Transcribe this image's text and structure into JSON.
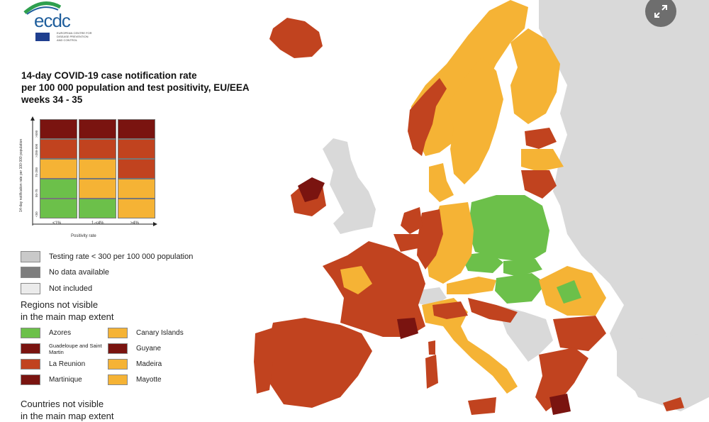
{
  "logo": {
    "text": "ecdc",
    "subtitle": "EUROPEAN CENTRE FOR DISEASE PREVENTION AND CONTROL"
  },
  "title": {
    "line1": "14-day COVID-19 case notification rate",
    "line2": "per 100 000 population and test positivity, EU/EEA",
    "line3": "weeks 34 - 35"
  },
  "matrix": {
    "y_axis_label": "14-day notification rate per 100 000 population",
    "y_ticks": [
      "<50",
      "50-75",
      "75-200",
      ">200-500",
      ">500"
    ],
    "x_axis_label": "Positivity rate",
    "x_ticks": [
      "<1%",
      "1-<4%",
      "≥4%"
    ],
    "colors": {
      "green": "#6cc04a",
      "yellow": "#f5b335",
      "red": "#c1431f",
      "darkred": "#7a1410"
    },
    "grid": [
      [
        "darkred",
        "darkred",
        "darkred"
      ],
      [
        "red",
        "red",
        "red"
      ],
      [
        "yellow",
        "yellow",
        "red"
      ],
      [
        "green",
        "yellow",
        "yellow"
      ],
      [
        "green",
        "green",
        "yellow"
      ]
    ]
  },
  "legend": {
    "testing_rate": "Testing rate < 300 per 100 000 population",
    "no_data": "No data available",
    "not_included": "Not included",
    "testing_color": "#c9c9c9",
    "no_data_color": "#7d7d7d",
    "not_included_color": "#ebebeb"
  },
  "regions": {
    "heading1": "Regions not visible",
    "heading2": "in the main map extent",
    "items": [
      {
        "label": "Azores",
        "color": "#6cc04a"
      },
      {
        "label": "Canary Islands",
        "color": "#f5b335"
      },
      {
        "label": "Guadeloupe and Saint Martin",
        "color": "#7a1410"
      },
      {
        "label": "Guyane",
        "color": "#7a1410"
      },
      {
        "label": "La Reunion",
        "color": "#c1431f"
      },
      {
        "label": "Madeira",
        "color": "#f5b335"
      },
      {
        "label": "Martinique",
        "color": "#7a1410"
      },
      {
        "label": "Mayotte",
        "color": "#f5b335"
      }
    ]
  },
  "countries": {
    "heading1": "Countries not visible",
    "heading2": "in the main map extent"
  },
  "map": {
    "sea_color": "#ffffff",
    "non_eu_color": "#d9d9d9",
    "expand_icon": "expand-arrows-icon"
  }
}
